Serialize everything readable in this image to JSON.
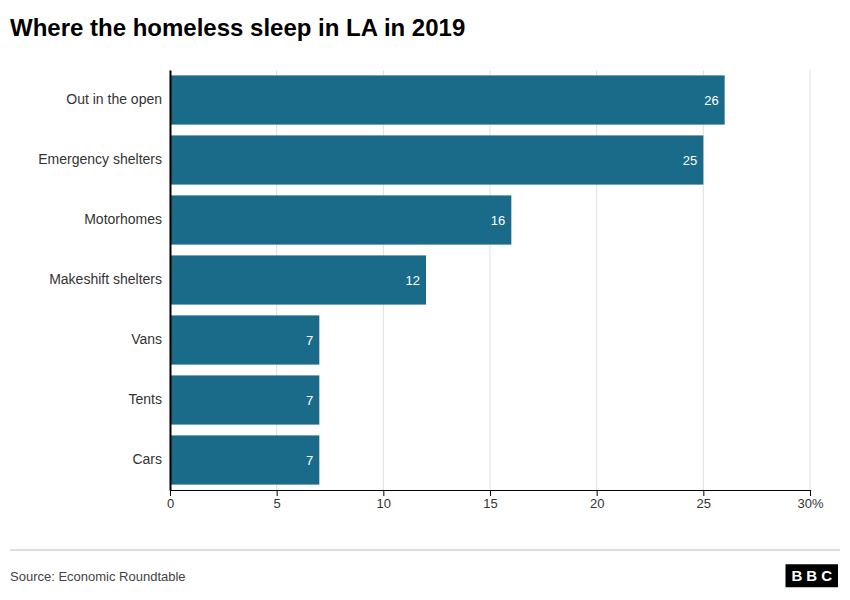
{
  "chart_data": {
    "type": "bar",
    "orientation": "horizontal",
    "title": "Where the homeless sleep in LA in 2019",
    "categories": [
      "Out in the open",
      "Emergency shelters",
      "Motorhomes",
      "Makeshift shelters",
      "Vans",
      "Tents",
      "Cars"
    ],
    "values": [
      26,
      25,
      16,
      12,
      7,
      7,
      7
    ],
    "color": "#1a6b8a",
    "xlim": [
      0,
      30
    ],
    "xticks": [
      0,
      5,
      10,
      15,
      20,
      25,
      {
        "value": 30,
        "label": "30%"
      }
    ],
    "grid": true,
    "data_labels": true,
    "annotations": [
      "Source: Economic Roundtable",
      "BBC"
    ]
  }
}
